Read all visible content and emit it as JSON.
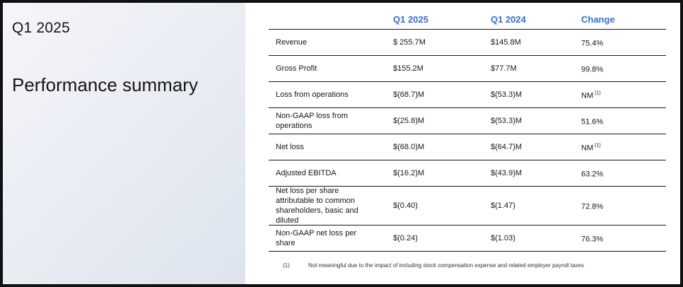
{
  "left_panel": {
    "quarter": "Q1 2025",
    "title": "Performance summary"
  },
  "table": {
    "headers": [
      "Q1 2025",
      "Q1 2024",
      "Change"
    ],
    "rows": [
      {
        "label": "Revenue",
        "q1_2025": "$ 255.7M",
        "q1_2024": "$145.8M",
        "change": "75.4%",
        "note": ""
      },
      {
        "label": "Gross Profit",
        "q1_2025": "$155.2M",
        "q1_2024": "$77.7M",
        "change": "99.8%",
        "note": ""
      },
      {
        "label": "Loss from operations",
        "q1_2025": "$(68.7)M",
        "q1_2024": "$(53.3)M",
        "change": "NM",
        "note": "(1)"
      },
      {
        "label": "Non-GAAP loss from operations",
        "q1_2025": "$(25.8)M",
        "q1_2024": "$(53.3)M",
        "change": "51.6%",
        "note": ""
      },
      {
        "label": "Net loss",
        "q1_2025": "$(68.0)M",
        "q1_2024": "$(64.7)M",
        "change": "NM",
        "note": "(1)"
      },
      {
        "label": "Adjusted EBITDA",
        "q1_2025": "$(16.2)M",
        "q1_2024": "$(43.9)M",
        "change": "63.2%",
        "note": ""
      },
      {
        "label": "Net loss per share attributable to common shareholders, basic and diluted",
        "q1_2025": "$(0.40)",
        "q1_2024": "$(1.47)",
        "change": "72.8%",
        "note": ""
      },
      {
        "label": "Non-GAAP net loss per share",
        "q1_2025": "$(0.24)",
        "q1_2024": "$(1.03)",
        "change": "76.3%",
        "note": ""
      }
    ]
  },
  "footnote": {
    "number": "(1)",
    "text": "Not meaningful due to the impact of including stock compensation expense and related employer payroll taxes"
  },
  "colors": {
    "header_accent": "#2f6fea",
    "text": "#161616"
  }
}
